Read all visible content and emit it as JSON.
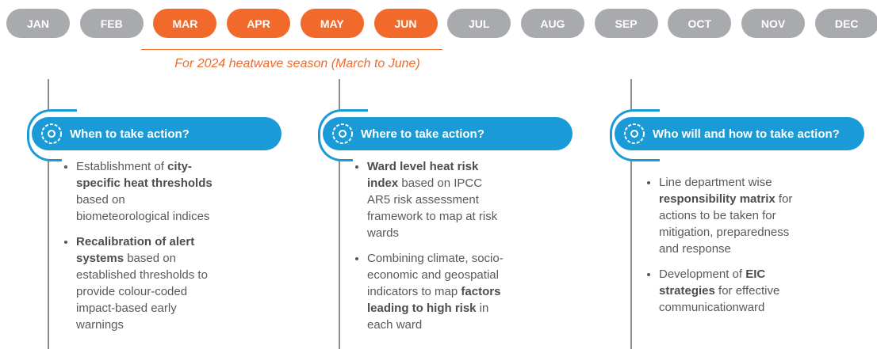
{
  "months": [
    {
      "label": "JAN",
      "highlight": false
    },
    {
      "label": "FEB",
      "highlight": false
    },
    {
      "label": "MAR",
      "highlight": true
    },
    {
      "label": "APR",
      "highlight": true
    },
    {
      "label": "MAY",
      "highlight": true
    },
    {
      "label": "JUN",
      "highlight": true
    },
    {
      "label": "JUL",
      "highlight": false
    },
    {
      "label": "AUG",
      "highlight": false
    },
    {
      "label": "SEP",
      "highlight": false
    },
    {
      "label": "OCT",
      "highlight": false
    },
    {
      "label": "NOV",
      "highlight": false
    },
    {
      "label": "DEC",
      "highlight": false
    }
  ],
  "note": "For 2024 heatwave season (March to June)",
  "columns": [
    {
      "title": "When to take action?",
      "bullets": [
        [
          {
            "text": "Establishment of ",
            "bold": false
          },
          {
            "text": "city-specific heat thresholds",
            "bold": true
          },
          {
            "text": " based on biometeorological indices",
            "bold": false
          }
        ],
        [
          {
            "text": "Recalibration of alert systems",
            "bold": true
          },
          {
            "text": " based on established thresholds to provide colour-coded impact-based early warnings",
            "bold": false
          }
        ]
      ]
    },
    {
      "title": "Where to take action?",
      "bullets": [
        [
          {
            "text": "Ward level heat risk index",
            "bold": true
          },
          {
            "text": " based on IPCC AR5 risk assessment framework to map at risk wards",
            "bold": false
          }
        ],
        [
          {
            "text": "Combining climate, socio-economic and geospatial indicators to map ",
            "bold": false
          },
          {
            "text": "factors leading to high risk",
            "bold": true
          },
          {
            "text": " in each ward",
            "bold": false
          }
        ]
      ]
    },
    {
      "title": "Who will and how to take action?",
      "bullets": [
        [
          {
            "text": "Line department wise ",
            "bold": false
          },
          {
            "text": "responsibility matrix",
            "bold": true
          },
          {
            "text": " for actions to be taken for mitigation, preparedness and response",
            "bold": false
          }
        ],
        [
          {
            "text": "Development of ",
            "bold": false
          },
          {
            "text": "EIC strategies",
            "bold": true
          },
          {
            "text": " for effective communicationward",
            "bold": false
          }
        ]
      ]
    }
  ]
}
